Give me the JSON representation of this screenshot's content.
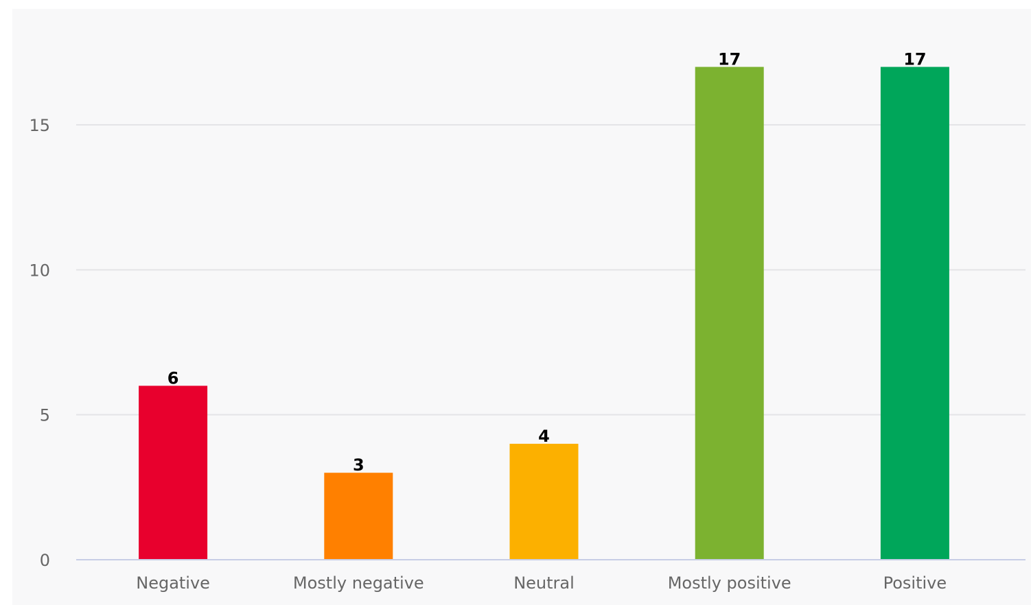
{
  "chart_data": {
    "type": "bar",
    "title": "",
    "xlabel": "",
    "ylabel": "",
    "categories": [
      "Negative",
      "Mostly negative",
      "Neutral",
      "Mostly positive",
      "Positive"
    ],
    "values": [
      6,
      3,
      4,
      17,
      17
    ],
    "colors": [
      "#e8002d",
      "#ff8000",
      "#fcb000",
      "#7cb230",
      "#00a65a"
    ],
    "ylim": [
      0,
      19
    ],
    "yticks": [
      0,
      5,
      10,
      15
    ],
    "grid": true,
    "legend": "none",
    "gridline_color": "#e4e4e7",
    "axis_line_color": "#c7cde6",
    "background": "#f8f8f9"
  }
}
